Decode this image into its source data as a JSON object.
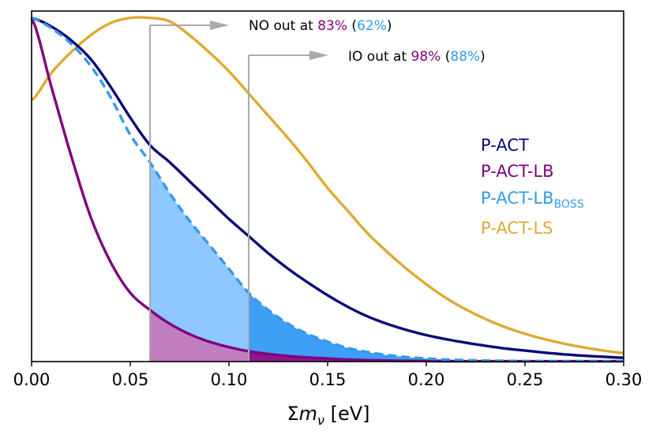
{
  "chart_data": {
    "type": "line",
    "title": "",
    "xlabel": "Σm_ν [eV]",
    "xlabel_parts": {
      "sigma": "Σ",
      "m": "m",
      "sub": "ν",
      "unit": " [eV]"
    },
    "ylabel": "",
    "xlim": [
      0.0,
      0.3
    ],
    "ylim": [
      0.0,
      1.02
    ],
    "xticks": [
      0.0,
      0.05,
      0.1,
      0.15,
      0.2,
      0.25,
      0.3
    ],
    "xtick_labels": [
      "0.00",
      "0.05",
      "0.10",
      "0.15",
      "0.20",
      "0.25",
      "0.30"
    ],
    "x": [
      0.0,
      0.01,
      0.02,
      0.03,
      0.04,
      0.05,
      0.06,
      0.07,
      0.08,
      0.09,
      0.1,
      0.11,
      0.12,
      0.13,
      0.14,
      0.15,
      0.16,
      0.17,
      0.18,
      0.19,
      0.2,
      0.21,
      0.22,
      0.23,
      0.24,
      0.25,
      0.26,
      0.27,
      0.28,
      0.29,
      0.3
    ],
    "series": [
      {
        "name": "P-ACT",
        "color": "#0a0a7a",
        "dash": "solid",
        "values": [
          1.0,
          0.975,
          0.935,
          0.88,
          0.8,
          0.71,
          0.63,
          0.58,
          0.525,
          0.47,
          0.415,
          0.365,
          0.315,
          0.27,
          0.23,
          0.193,
          0.16,
          0.132,
          0.11,
          0.092,
          0.077,
          0.065,
          0.055,
          0.046,
          0.038,
          0.032,
          0.026,
          0.021,
          0.017,
          0.014,
          0.011
        ]
      },
      {
        "name": "P-ACT-LB",
        "color": "#800080",
        "dash": "solid",
        "values": [
          1.0,
          0.8,
          0.6,
          0.42,
          0.29,
          0.2,
          0.15,
          0.11,
          0.08,
          0.058,
          0.042,
          0.03,
          0.022,
          0.016,
          0.012,
          0.009,
          0.006,
          0.004,
          0.003,
          0.002,
          0.0015,
          0.001,
          0.001,
          0.001,
          0.001,
          0.001,
          0.001,
          0.001,
          0.001,
          0.001,
          0.001
        ]
      },
      {
        "name": "P-ACT-LB_BOSS",
        "legend_main": "P-ACT-LB",
        "legend_sub": "BOSS",
        "color": "#3399ee",
        "dash": "dashed",
        "values": [
          1.0,
          0.97,
          0.925,
          0.86,
          0.77,
          0.66,
          0.58,
          0.49,
          0.41,
          0.34,
          0.27,
          0.2,
          0.15,
          0.11,
          0.08,
          0.058,
          0.04,
          0.028,
          0.019,
          0.013,
          0.009,
          0.006,
          0.004,
          0.003,
          0.002,
          0.0015,
          0.001,
          0.001,
          0.001,
          0.001,
          0.001
        ]
      },
      {
        "name": "P-ACT-LS",
        "color": "#ddaa33",
        "dash": "solid",
        "values": [
          0.76,
          0.84,
          0.9,
          0.95,
          0.985,
          1.0,
          1.0,
          0.99,
          0.95,
          0.9,
          0.845,
          0.78,
          0.715,
          0.65,
          0.58,
          0.505,
          0.44,
          0.375,
          0.32,
          0.27,
          0.225,
          0.185,
          0.152,
          0.124,
          0.1,
          0.081,
          0.065,
          0.052,
          0.041,
          0.032,
          0.025
        ]
      }
    ],
    "shaded_regions": [
      {
        "series": "P-ACT-LB_BOSS",
        "from": 0.06,
        "to": 0.11,
        "color": "#8ec8ff"
      },
      {
        "series": "P-ACT-LB_BOSS",
        "from": 0.11,
        "to": 0.3,
        "color": "#3d9ff5"
      },
      {
        "series": "P-ACT-LB",
        "from": 0.06,
        "to": 0.11,
        "color": "#c07ec0"
      },
      {
        "series": "P-ACT-LB",
        "from": 0.11,
        "to": 0.3,
        "color": "#8e168e"
      }
    ],
    "vlines": [
      {
        "x": 0.06,
        "color": "#aaaaaa",
        "label": "NO"
      },
      {
        "x": 0.11,
        "color": "#aaaaaa",
        "label": "IO"
      }
    ],
    "annotations": [
      {
        "prefix": "NO out at ",
        "val1": "83%",
        "open": " (",
        "val2": "62%",
        "close": ")",
        "color1": "#800080",
        "color2": "#3399ee"
      },
      {
        "prefix": "IO out at ",
        "val1": "98%",
        "open": " (",
        "val2": "88%",
        "close": ")",
        "color1": "#800080",
        "color2": "#3399ee"
      }
    ],
    "legend_position": "right-center"
  }
}
